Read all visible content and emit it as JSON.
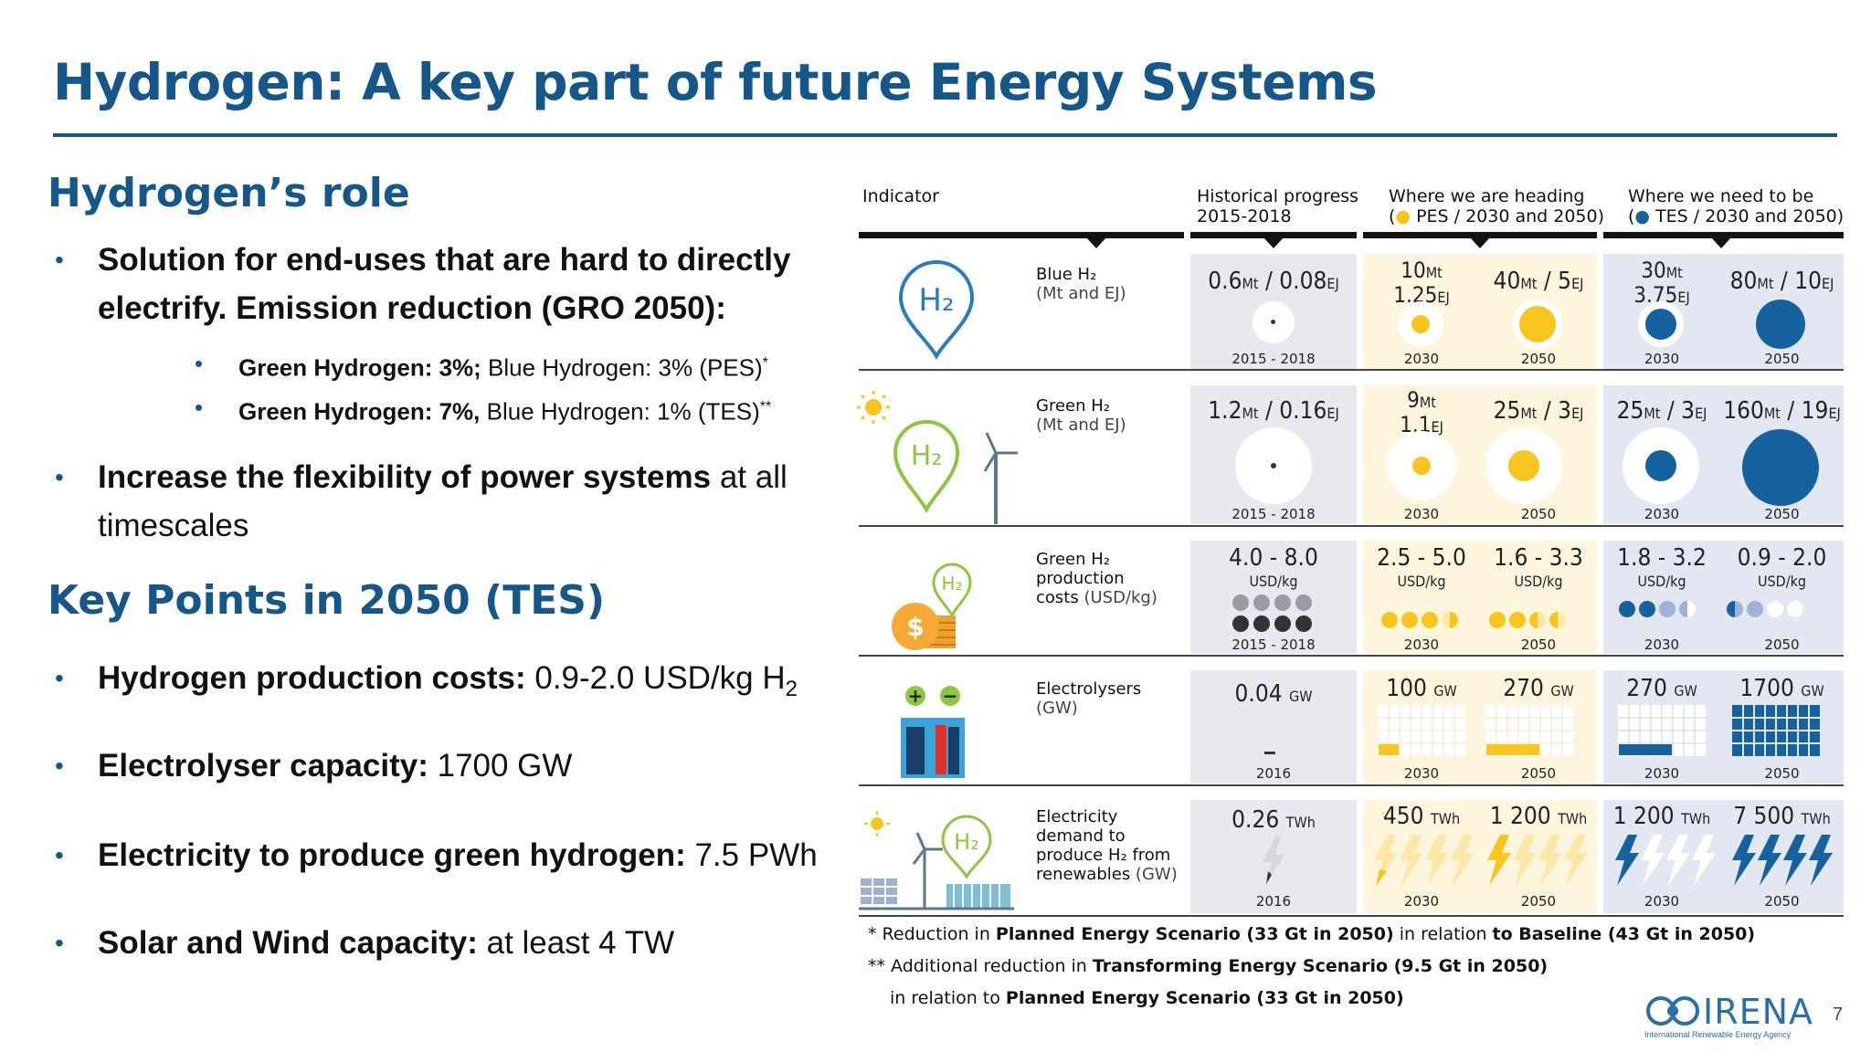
{
  "title": "Hydrogen: A key part of future Energy Systems",
  "role": {
    "heading": "Hydrogen’s role",
    "b1": "Solution for end-uses that are hard to directly electrify. Emission reduction (GRO 2050):",
    "s1_bold": "Green Hydrogen: 3%;",
    "s1_rest": " Blue Hydrogen: 3% (PES)",
    "s1_sup": "*",
    "s2_bold": "Green Hydrogen: 7%,",
    "s2_rest": " Blue Hydrogen: 1% (TES)",
    "s2_sup": "**",
    "b2_bold": "Increase the flexibility of power systems",
    "b2_rest": " at all timescales"
  },
  "key": {
    "heading": "Key Points in 2050 (TES)",
    "k1_bold": "Hydrogen production costs:",
    "k1_rest": " 0.9-2.0 USD/kg H",
    "k1_sub": "2",
    "k2_bold": "Electrolyser capacity:",
    "k2_rest": " 1700 GW",
    "k3_bold": "Electricity to produce green hydrogen:",
    "k3_rest": " 7.5 PWh",
    "k4_bold": "Solar and Wind capacity:",
    "k4_rest": " at least 4 TW"
  },
  "table": {
    "h_indicator": "Indicator",
    "h_hist": "Historical progress",
    "h_hist_sub": "2015-2018",
    "h_pes": "Where we are heading",
    "h_pes_sub": "PES / 2030 and 2050)",
    "h_tes": "Where we need to be",
    "h_tes_sub": "TES / 2030 and 2050)",
    "open_paren": "(",
    "rows": {
      "blue": {
        "label": "Blue H₂",
        "unit": "(Mt and EJ)",
        "hist": "0.6",
        "hist_u1": "Mt",
        "hist_sep": " / ",
        "hist2": "0.08",
        "hist_u2": "EJ",
        "p30a": "10",
        "p30a_u": "Mt",
        "p30b": "1.25",
        "p30b_u": "EJ",
        "p50a": "40",
        "p50a_u": "Mt",
        "p50sep": " / ",
        "p50b": "5",
        "p50b_u": "EJ",
        "t30a": "30",
        "t30a_u": "Mt",
        "t30b": "3.75",
        "t30b_u": "EJ",
        "t50a": "80",
        "t50a_u": "Mt",
        "t50sep": " / ",
        "t50b": "10",
        "t50b_u": "EJ",
        "y_hist": "2015 - 2018",
        "y30": "2030",
        "y50": "2050"
      },
      "green": {
        "label": "Green H₂",
        "unit": "(Mt and EJ)",
        "hist": "1.2",
        "hist_u1": "Mt",
        "hist_sep": " / ",
        "hist2": "0.16",
        "hist_u2": "EJ",
        "p30a": "9",
        "p30a_u": "Mt",
        "p30b": "1.1",
        "p30b_u": "EJ",
        "p50a": "25",
        "p50a_u": "Mt",
        "p50sep": " / ",
        "p50b": "3",
        "p50b_u": "EJ",
        "t30a": "25",
        "t30a_u": "Mt",
        "t30sep": " / ",
        "t30b": "3",
        "t30b_u": "EJ",
        "t50a": "160",
        "t50a_u": "Mt",
        "t50sep": " / ",
        "t50b": "19",
        "t50b_u": "EJ",
        "y_hist": "2015 - 2018",
        "y30": "2030",
        "y50": "2050"
      },
      "cost": {
        "label1": "Green H₂",
        "label2": "production",
        "label3": "costs",
        "unit": " (USD/kg)",
        "hist": "4.0 - 8.0",
        "p30": "2.5 - 5.0",
        "p50": "1.6 - 3.3",
        "t30": "1.8 - 3.2",
        "t50": "0.9 - 2.0",
        "usd": "USD/kg",
        "y_hist": "2015 - 2018",
        "y30": "2030",
        "y50": "2050"
      },
      "elec": {
        "label": "Electrolysers",
        "unit": "(GW)",
        "hist": "0.04",
        "p30": "100",
        "p50": "270",
        "t30": "270",
        "t50": "1700",
        "gw": "GW",
        "y_hist": "2016",
        "y30": "2030",
        "y50": "2050"
      },
      "demand": {
        "label1": "Electricity",
        "label2": "demand to",
        "label3": "produce H₂ from",
        "label4": "renewables",
        "unit": " (GW)",
        "hist": "0.26",
        "p30": "450",
        "p50": "1 200",
        "t30": "1 200",
        "t50": "7 500",
        "twh": "TWh",
        "y_hist": "2016",
        "y30": "2030",
        "y50": "2050"
      }
    }
  },
  "notes": {
    "n1_a": "* Reduction in ",
    "n1_b": "Planned Energy Scenario (33 Gt in 2050)",
    "n1_c": " in relation ",
    "n1_d": "to Baseline (43 Gt in 2050)",
    "n2_a": "** Additional reduction in ",
    "n2_b": "Transforming Energy Scenario (9.5 Gt in 2050)",
    "n3_a": "in relation to ",
    "n3_b": "Planned Energy Scenario (33 Gt in 2050)"
  },
  "logo_text": "IRENA",
  "logo_sub": "International Renewable Energy Agency",
  "h2_icon_text": "H₂",
  "page_number": "7",
  "colors": {
    "brand": "#16578a",
    "yellow": "#f7c51d",
    "blue": "#16629e",
    "green": "#8dc63f"
  }
}
